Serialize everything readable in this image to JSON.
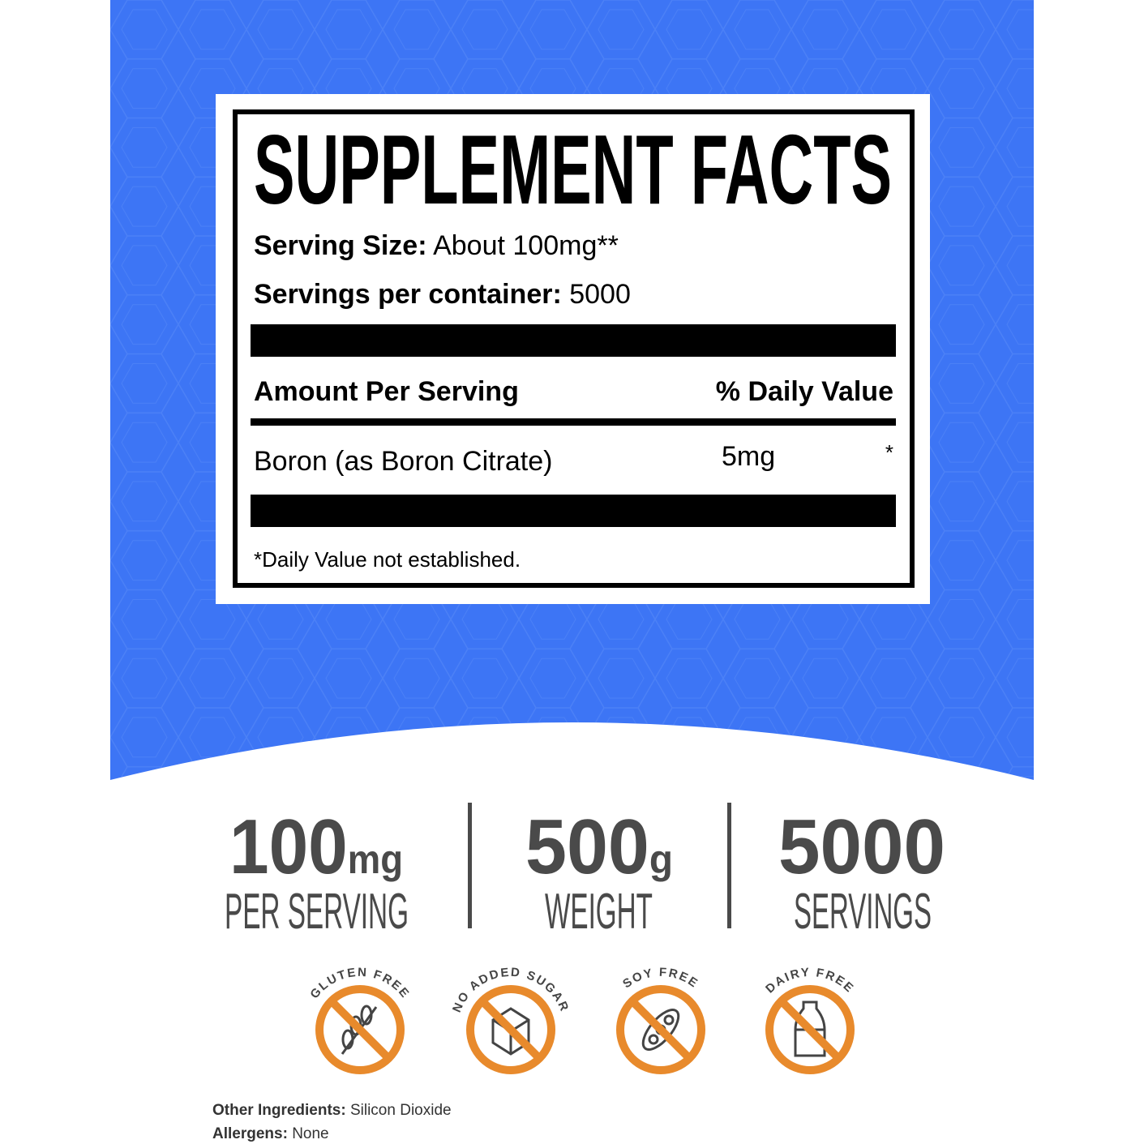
{
  "colors": {
    "brand_blue": "#3d75f5",
    "badge_orange": "#e88a2c",
    "text_gray": "#4a4a4a"
  },
  "facts": {
    "title": "SUPPLEMENT FACTS",
    "serving_size_label": "Serving Size:",
    "serving_size_value": "About 100mg**",
    "servings_label": "Servings per container:",
    "servings_value": "5000",
    "amount_header": "Amount Per Serving",
    "dv_header": "% Daily Value",
    "ingredient": "Boron (as Boron Citrate)",
    "amount": "5mg",
    "dv": "*",
    "footnote": "*Daily Value not established."
  },
  "stats": [
    {
      "value": "100",
      "unit": "mg",
      "label": "PER SERVING"
    },
    {
      "value": "500",
      "unit": "g",
      "label": "WEIGHT"
    },
    {
      "value": "5000",
      "unit": "",
      "label": "SERVINGS"
    }
  ],
  "badges": [
    {
      "label": "GLUTEN FREE",
      "icon": "wheat-icon"
    },
    {
      "label": "NO ADDED SUGAR",
      "icon": "sugar-cube-icon"
    },
    {
      "label": "SOY FREE",
      "icon": "soybean-icon"
    },
    {
      "label": "DAIRY FREE",
      "icon": "milk-bottle-icon"
    }
  ],
  "footer": {
    "other_label": "Other Ingredients:",
    "other_value": "Silicon Dioxide",
    "allergens_label": "Allergens:",
    "allergens_value": "None"
  }
}
